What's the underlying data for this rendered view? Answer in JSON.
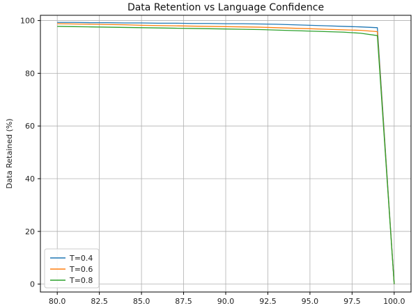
{
  "chart_data": {
    "type": "line",
    "title": "Data Retention vs Language Confidence",
    "xlabel": "",
    "ylabel": "Data Retained (%)",
    "xlim": [
      79.0,
      101.0
    ],
    "ylim": [
      -3,
      102
    ],
    "xticks": [
      80.0,
      82.5,
      85.0,
      87.5,
      90.0,
      92.5,
      95.0,
      97.5,
      100.0
    ],
    "xtick_labels": [
      "80.0",
      "82.5",
      "85.0",
      "87.5",
      "90.0",
      "92.5",
      "95.0",
      "97.5",
      "100.0"
    ],
    "yticks": [
      0,
      20,
      40,
      60,
      80,
      100
    ],
    "ytick_labels": [
      "0",
      "20",
      "40",
      "60",
      "80",
      "100"
    ],
    "grid": true,
    "legend_position": "lower-left",
    "x": [
      80,
      81,
      82,
      83,
      84,
      85,
      86,
      87,
      88,
      89,
      90,
      91,
      92,
      93,
      94,
      95,
      96,
      97,
      98,
      99,
      100
    ],
    "series": [
      {
        "name": "T=0.4",
        "color": "#1f77b4",
        "values": [
          99.3,
          99.3,
          99.2,
          99.2,
          99.1,
          99.1,
          99.0,
          99.0,
          98.9,
          98.9,
          98.8,
          98.8,
          98.7,
          98.6,
          98.4,
          98.2,
          98.0,
          97.8,
          97.6,
          97.3,
          0.0
        ]
      },
      {
        "name": "T=0.6",
        "color": "#ff7f0e",
        "values": [
          98.8,
          98.7,
          98.6,
          98.5,
          98.4,
          98.2,
          98.1,
          98.0,
          97.9,
          97.8,
          97.7,
          97.6,
          97.5,
          97.3,
          97.1,
          96.9,
          96.7,
          96.5,
          96.3,
          95.8,
          0.0
        ]
      },
      {
        "name": "T=0.8",
        "color": "#2ca02c",
        "values": [
          97.8,
          97.7,
          97.6,
          97.5,
          97.4,
          97.3,
          97.2,
          97.1,
          97.0,
          96.9,
          96.8,
          96.7,
          96.6,
          96.4,
          96.2,
          96.0,
          95.8,
          95.6,
          95.2,
          94.3,
          0.0
        ]
      }
    ]
  }
}
